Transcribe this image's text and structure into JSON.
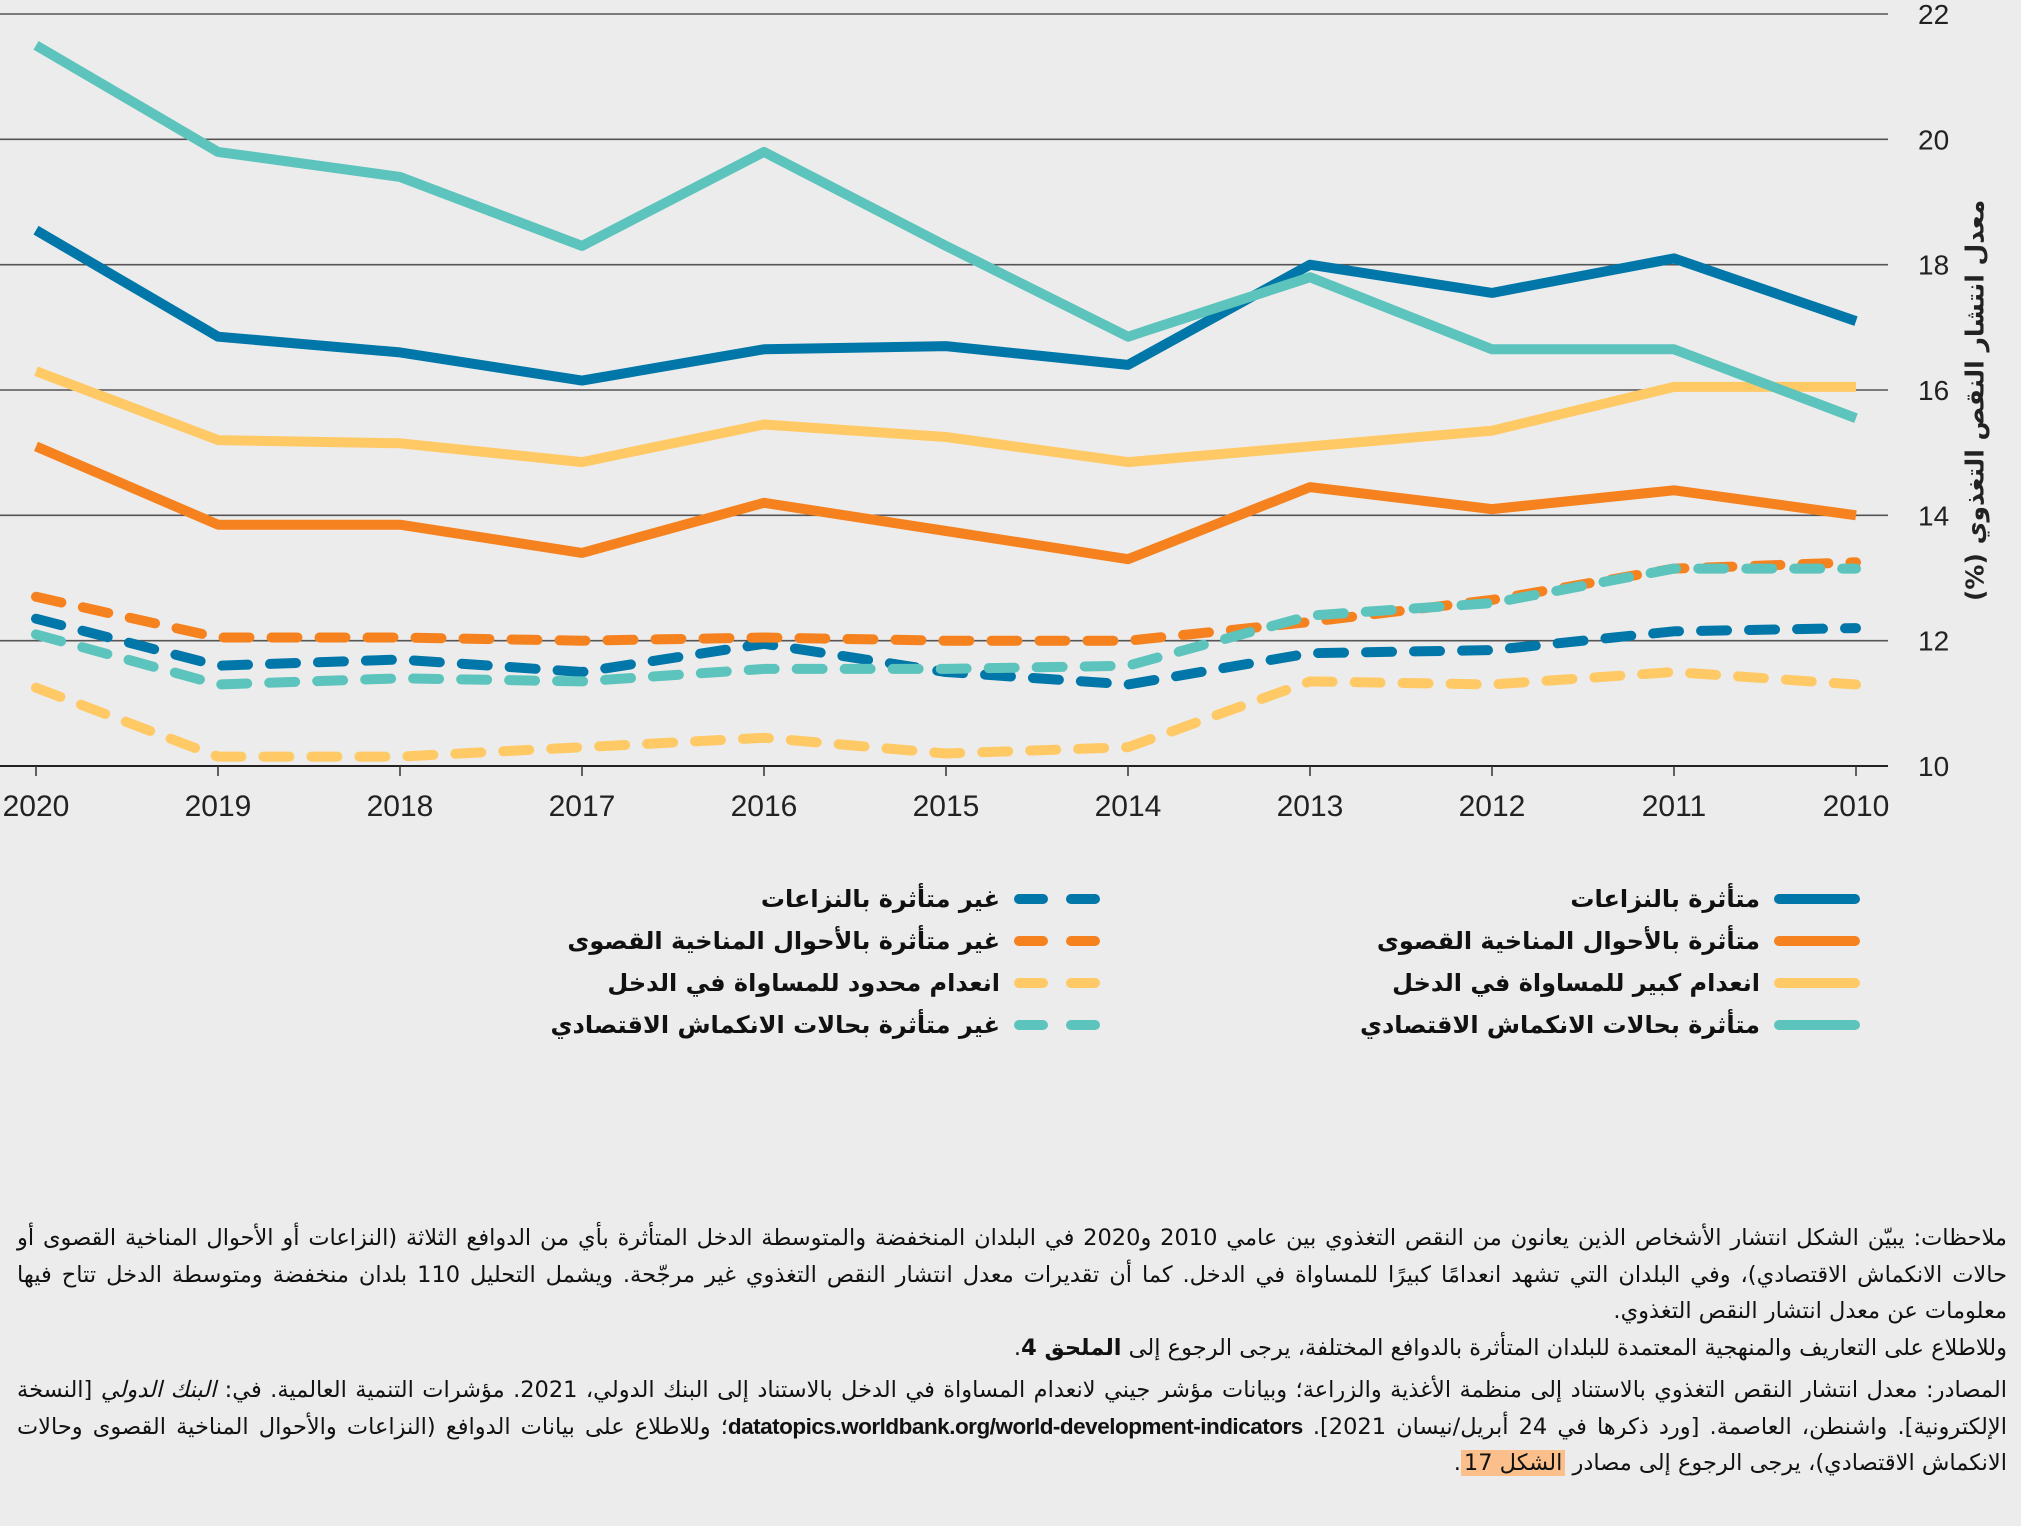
{
  "chart_data": {
    "type": "line",
    "title": "",
    "xlabel": "",
    "ylabel": "معدل انتشار النقص التغذوي (%)",
    "x": [
      2020,
      2019,
      2018,
      2017,
      2016,
      2015,
      2014,
      2013,
      2012,
      2011,
      2010
    ],
    "x_tick_labels": [
      "2020",
      "2019",
      "2018",
      "2017",
      "2016",
      "2015",
      "2014",
      "2013",
      "2012",
      "2011",
      "2010"
    ],
    "x_direction": "reversed (2020 at left, 2010 at right)",
    "ylim": [
      10,
      22
    ],
    "y_ticks": [
      10,
      12,
      14,
      16,
      18,
      20,
      22
    ],
    "y_tick_labels": [
      "10",
      "12",
      "14",
      "16",
      "18",
      "20",
      "22"
    ],
    "y_axis_position": "right",
    "grid": true,
    "legend_position": "bottom",
    "series": [
      {
        "name": "متأثرة بالنزاعات",
        "style": "solid",
        "color": "#0077a8",
        "values": [
          18.55,
          16.85,
          16.6,
          16.15,
          16.65,
          16.7,
          16.4,
          18.0,
          17.55,
          18.1,
          17.1
        ]
      },
      {
        "name": "متأثرة بالأحوال المناخية القصوى",
        "style": "solid",
        "color": "#f5821f",
        "values": [
          15.1,
          13.85,
          13.85,
          13.4,
          14.2,
          13.75,
          13.3,
          14.45,
          14.1,
          14.4,
          14.0
        ]
      },
      {
        "name": "انعدام كبير للمساواة في الدخل",
        "style": "solid",
        "color": "#ffc966",
        "values": [
          16.3,
          15.2,
          15.15,
          14.85,
          15.45,
          15.25,
          14.85,
          15.1,
          15.35,
          16.05,
          16.05
        ]
      },
      {
        "name": "متأثرة بحالات الانكماش الاقتصادي",
        "style": "solid",
        "color": "#5cc4bd",
        "values": [
          21.5,
          19.8,
          19.4,
          18.3,
          19.8,
          18.3,
          16.85,
          17.8,
          16.65,
          16.65,
          15.55
        ]
      },
      {
        "name": "غير متأثرة بالنزاعات",
        "style": "dashed",
        "color": "#0077a8",
        "values": [
          12.35,
          11.6,
          11.7,
          11.5,
          11.95,
          11.5,
          11.3,
          11.8,
          11.85,
          12.15,
          12.2
        ]
      },
      {
        "name": "غير متأثرة بالأحوال المناخية القصوى",
        "style": "dashed",
        "color": "#f5821f",
        "values": [
          12.7,
          12.05,
          12.05,
          12.0,
          12.05,
          12.0,
          12.0,
          12.3,
          12.65,
          13.15,
          13.25
        ]
      },
      {
        "name": "انعدام محدود للمساواة في الدخل",
        "style": "dashed",
        "color": "#ffc966",
        "values": [
          11.25,
          10.15,
          10.15,
          10.3,
          10.45,
          10.2,
          10.3,
          11.35,
          11.3,
          11.5,
          11.3
        ]
      },
      {
        "name": "غير متأثرة بحالات الانكماش الاقتصادي",
        "style": "dashed",
        "color": "#5cc4bd",
        "values": [
          12.1,
          11.3,
          11.4,
          11.35,
          11.55,
          11.55,
          11.6,
          12.4,
          12.6,
          13.15,
          13.15
        ]
      }
    ]
  },
  "legend": {
    "right_column": [
      {
        "label": "متأثرة بالنزاعات",
        "color": "#0077a8",
        "style": "solid"
      },
      {
        "label": "متأثرة بالأحوال المناخية القصوى",
        "color": "#f5821f",
        "style": "solid"
      },
      {
        "label": "انعدام كبير للمساواة في الدخل",
        "color": "#ffc966",
        "style": "solid"
      },
      {
        "label": "متأثرة بحالات الانكماش الاقتصادي",
        "color": "#5cc4bd",
        "style": "solid"
      }
    ],
    "left_column": [
      {
        "label": "غير متأثرة بالنزاعات",
        "color": "#0077a8",
        "style": "dashed"
      },
      {
        "label": "غير متأثرة بالأحوال المناخية القصوى",
        "color": "#f5821f",
        "style": "dashed"
      },
      {
        "label": "انعدام محدود للمساواة في الدخل",
        "color": "#ffc966",
        "style": "dashed"
      },
      {
        "label": "غير متأثرة بحالات الانكماش الاقتصادي",
        "color": "#5cc4bd",
        "style": "dashed"
      }
    ]
  },
  "notes": {
    "text": "ملاحظات: يبيّن الشكل انتشار الأشخاص الذين يعانون من النقص التغذوي بين عامي 2010 و2020 في البلدان المنخفضة والمتوسطة الدخل المتأثرة بأي من الدوافع الثلاثة (النزاعات أو الأحوال المناخية القصوى أو حالات الانكماش الاقتصادي)، وفي البلدان التي تشهد انعدامًا كبيرًا للمساواة في الدخل. كما أن تقديرات معدل انتشار النقص التغذوي غير مرجّحة. ويشمل التحليل 110 بلدان منخفضة ومتوسطة الدخل تتاح فيها معلومات عن معدل انتشار النقص التغذوي.",
    "text2_prefix": "وللاطلاع على التعاريف والمنهجية المعتمدة للبلدان المتأثرة بالدوافع المختلفة، يرجى الرجوع إلى ",
    "text2_bold": "الملحق 4",
    "text2_suffix": "."
  },
  "sources": {
    "part1": "المصادر: معدل انتشار النقص التغذوي بالاستناد إلى منظمة الأغذية والزراعة؛ وبيانات مؤشر جيني لانعدام المساواة في الدخل بالاستناد إلى البنك الدولي، 2021. مؤشرات التنمية العالمية. في: ",
    "italic": "البنك الدولي",
    "part2": " [النسخة الإلكترونية]. واشنطن، العاصمة. [ورد ذكرها في 24 أبريل/نيسان 2021]. ",
    "url": "datatopics.worldbank.org/world-development-indicators",
    "part3": "؛ وللاطلاع على بيانات الدوافع (النزاعات والأحوال المناخية القصوى وحالات الانكماش الاقتصادي)، يرجى الرجوع إلى مصادر ",
    "link": "الشكل 17",
    "part4": "."
  }
}
